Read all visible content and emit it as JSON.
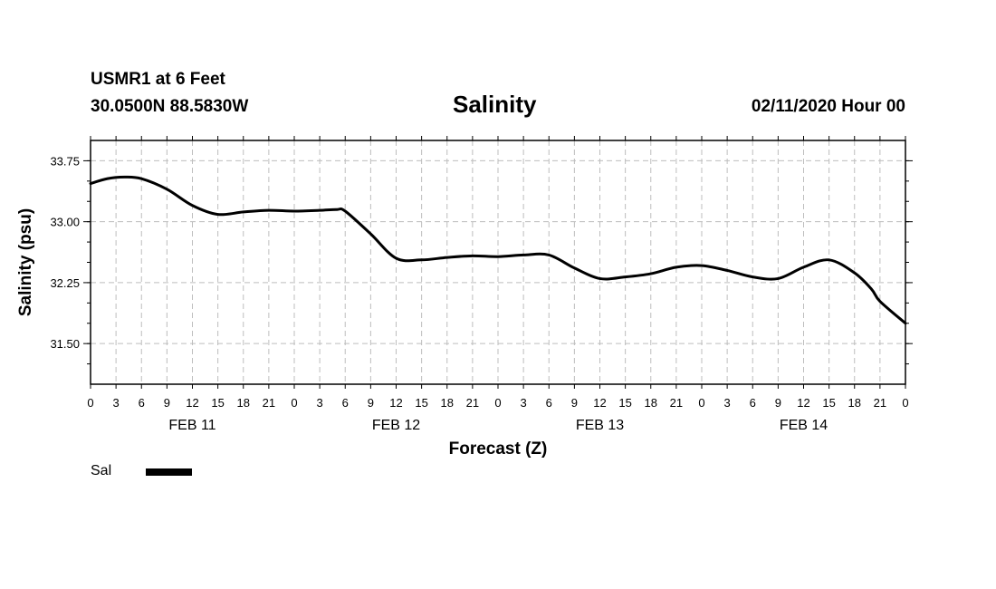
{
  "header": {
    "station": "USMR1 at 6 Feet",
    "coords": "30.0500N 88.5830W",
    "title": "Salinity",
    "datestamp": "02/11/2020 Hour 00"
  },
  "chart_data": {
    "type": "line",
    "title": "Salinity",
    "xlabel": "Forecast (Z)",
    "ylabel": "Salinity (psu)",
    "ylim": [
      31.0,
      34.0
    ],
    "yticks": [
      31.5,
      32.25,
      33.0,
      33.75
    ],
    "ytick_labels": [
      "31.50",
      "32.25",
      "33.00",
      "33.75"
    ],
    "xlim": [
      0,
      96
    ],
    "xticks": [
      0,
      3,
      6,
      9,
      12,
      15,
      18,
      21,
      24,
      27,
      30,
      33,
      36,
      39,
      42,
      45,
      48,
      51,
      54,
      57,
      60,
      63,
      66,
      69,
      72,
      75,
      78,
      81,
      84,
      87,
      90,
      93,
      96
    ],
    "xtick_labels": [
      "0",
      "3",
      "6",
      "9",
      "12",
      "15",
      "18",
      "21",
      "0",
      "3",
      "6",
      "9",
      "12",
      "15",
      "18",
      "21",
      "0",
      "3",
      "6",
      "9",
      "12",
      "15",
      "18",
      "21",
      "0",
      "3",
      "6",
      "9",
      "12",
      "15",
      "18",
      "21",
      "0"
    ],
    "day_labels": [
      {
        "x": 12,
        "label": "FEB 11"
      },
      {
        "x": 36,
        "label": "FEB 12"
      },
      {
        "x": 60,
        "label": "FEB 13"
      },
      {
        "x": 84,
        "label": "FEB 14"
      }
    ],
    "grid": true,
    "legend_position": "bottom-left",
    "series": [
      {
        "name": "Sal",
        "color": "#000000",
        "x": [
          0,
          2,
          4,
          6,
          9,
          12,
          15,
          18,
          21,
          24,
          27,
          29,
          30,
          33,
          36,
          39,
          42,
          45,
          48,
          51,
          54,
          57,
          60,
          63,
          66,
          69,
          72,
          75,
          78,
          81,
          84,
          87,
          90,
          92,
          93,
          96
        ],
        "y": [
          33.47,
          33.53,
          33.55,
          33.53,
          33.4,
          33.2,
          33.09,
          33.12,
          33.14,
          33.13,
          33.14,
          33.15,
          33.13,
          32.85,
          32.55,
          32.53,
          32.56,
          32.58,
          32.57,
          32.59,
          32.59,
          32.43,
          32.3,
          32.32,
          32.36,
          32.44,
          32.46,
          32.4,
          32.32,
          32.3,
          32.44,
          32.53,
          32.37,
          32.17,
          32.02,
          31.75
        ]
      }
    ]
  }
}
